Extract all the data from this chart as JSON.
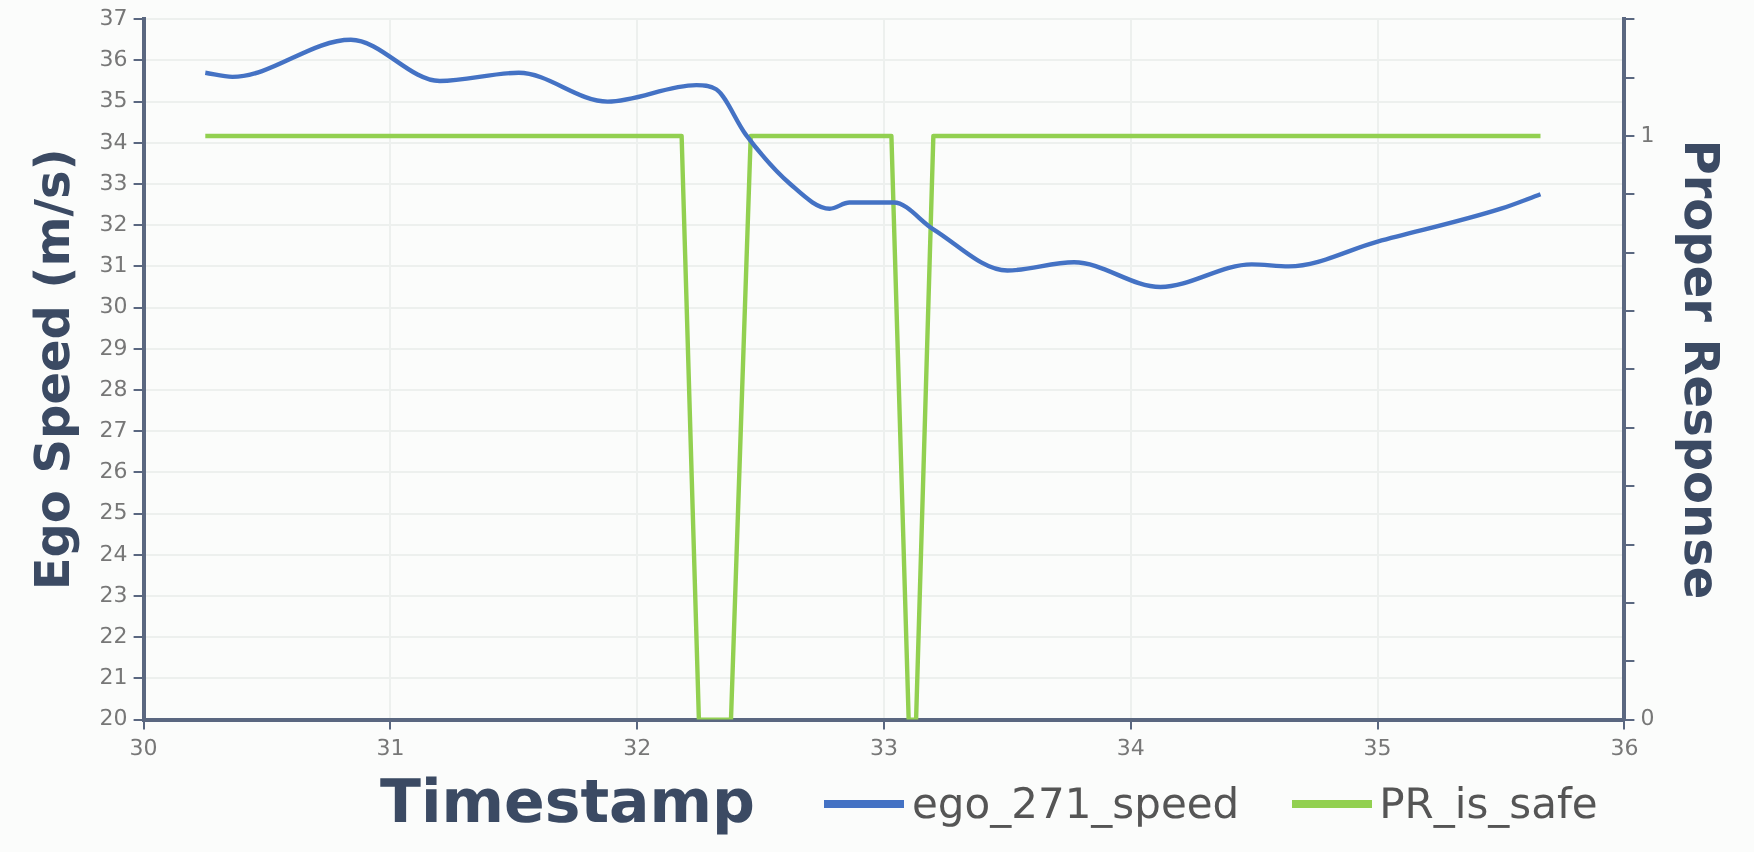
{
  "chart_data": {
    "type": "line",
    "xlabel": "Timestamp",
    "ylabel": "Ego Speed (m/s)",
    "y2label": "Proper Response",
    "xlim": [
      30,
      36
    ],
    "xticks": [
      30,
      31,
      32,
      33,
      34,
      35,
      36
    ],
    "ylim": [
      20,
      37
    ],
    "yticks": [
      20,
      21,
      22,
      23,
      24,
      25,
      26,
      27,
      28,
      29,
      30,
      31,
      32,
      33,
      34,
      35,
      36,
      37
    ],
    "y2lim": [
      0,
      1.2
    ],
    "y2ticks": [
      0,
      {
        "value": 0.1,
        "label": null
      },
      {
        "value": 0.2,
        "label": null
      },
      {
        "value": 0.3,
        "label": null
      },
      {
        "value": 0.4,
        "label": null
      },
      {
        "value": 0.5,
        "label": null
      },
      {
        "value": 0.6,
        "label": null
      },
      {
        "value": 0.7,
        "label": null
      },
      {
        "value": 0.8,
        "label": null
      },
      {
        "value": 0.9,
        "label": null
      },
      1,
      {
        "value": 1.1,
        "label": null
      },
      {
        "value": 1.2,
        "label": null
      }
    ],
    "grid": true,
    "legend": "bottom",
    "marker": "none",
    "series": [
      {
        "name": "ego_271_speed",
        "color": "#4472c4",
        "x": [
          30.25,
          30.36,
          30.84,
          31.2,
          31.52,
          31.88,
          32.24,
          32.32,
          32.44,
          32.62,
          32.78,
          32.86,
          33.04,
          33.2,
          33.5,
          33.77,
          34.12,
          34.49,
          34.64,
          35.0,
          35.5,
          35.66
        ],
        "values": [
          35.7,
          35.6,
          36.5,
          35.5,
          35.7,
          35.0,
          35.4,
          35.3,
          34.2,
          33.0,
          32.4,
          32.55,
          32.55,
          31.9,
          30.9,
          31.1,
          30.5,
          31.05,
          31.0,
          31.6,
          32.4,
          32.75
        ]
      },
      {
        "name": "PR_is_safe",
        "color": "#92d050",
        "axis": "y2",
        "type": "line",
        "x": [
          30.25,
          32.18,
          32.25,
          32.38,
          32.46,
          33.03,
          33.1,
          33.13,
          33.2,
          35.66
        ],
        "values": [
          1,
          1,
          0,
          0,
          1,
          1,
          0,
          0,
          1,
          1
        ]
      }
    ]
  }
}
